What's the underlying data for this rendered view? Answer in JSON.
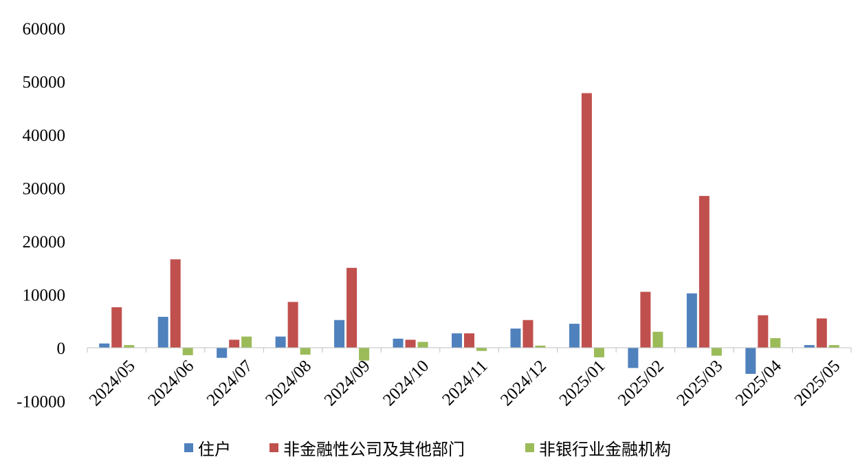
{
  "chart_data": {
    "type": "bar",
    "categories": [
      "2024/05",
      "2024/06",
      "2024/07",
      "2024/08",
      "2024/09",
      "2024/10",
      "2024/11",
      "2024/12",
      "2025/01",
      "2025/02",
      "2025/03",
      "2025/04",
      "2025/05"
    ],
    "series": [
      {
        "name": "住户",
        "color": "#4F81BD",
        "values": [
          800,
          5800,
          -1900,
          2100,
          5200,
          1700,
          2700,
          3600,
          4500,
          -3800,
          10200,
          -4900,
          500
        ]
      },
      {
        "name": "非金融性公司及其他部门",
        "color": "#C0504D",
        "values": [
          7600,
          16600,
          1500,
          8600,
          15000,
          1500,
          2700,
          5200,
          47800,
          10500,
          28500,
          6100,
          5500
        ]
      },
      {
        "name": "非银行业金融机构",
        "color": "#9BBB59",
        "values": [
          500,
          -1400,
          2100,
          -1300,
          -2400,
          1100,
          -600,
          400,
          -1800,
          3000,
          -1500,
          1800,
          500
        ]
      }
    ],
    "y_ticks": [
      60000,
      50000,
      40000,
      30000,
      20000,
      10000,
      0,
      -10000
    ],
    "ylim": [
      -10000,
      60000
    ],
    "legend": "bottom",
    "grid": false
  }
}
